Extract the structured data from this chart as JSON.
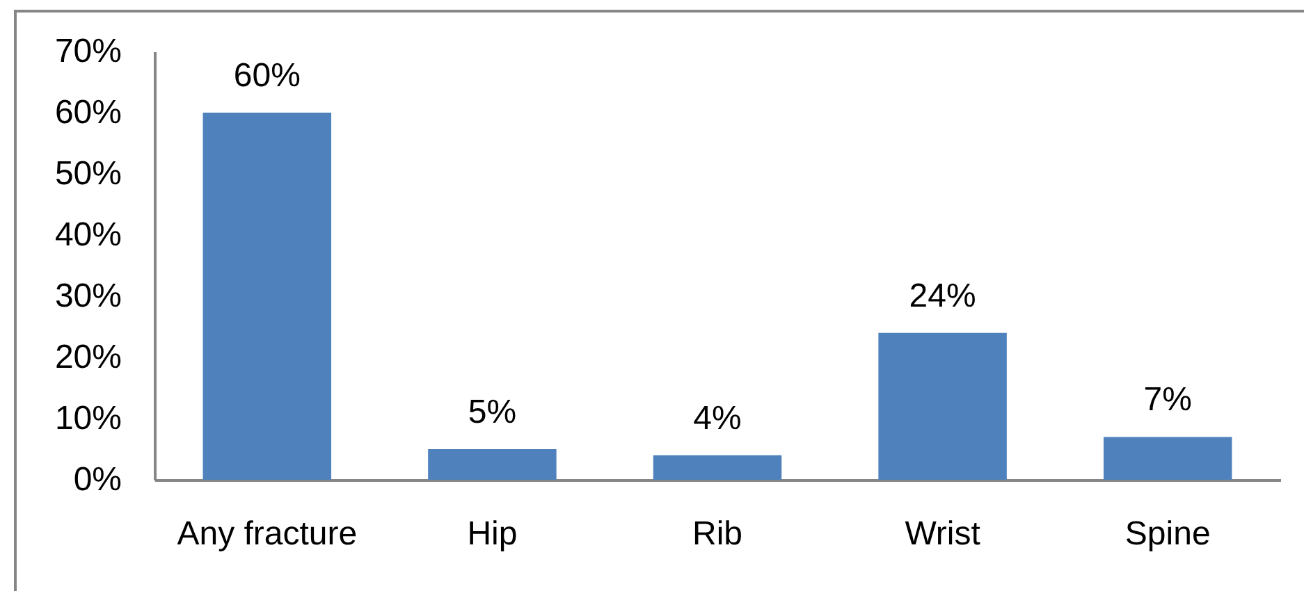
{
  "chart_data": {
    "type": "bar",
    "categories": [
      "Any fracture",
      "Hip",
      "Rib",
      "Wrist",
      "Spine"
    ],
    "values": [
      60,
      5,
      4,
      24,
      7
    ],
    "value_labels": [
      "60%",
      "5%",
      "4%",
      "24%",
      "7%"
    ],
    "color": "#4f81bd",
    "ylim": [
      0,
      70
    ],
    "yticks": [
      {
        "value": 0,
        "label": "0%"
      },
      {
        "value": 10,
        "label": "10%"
      },
      {
        "value": 20,
        "label": "20%"
      },
      {
        "value": 30,
        "label": "30%"
      },
      {
        "value": 40,
        "label": "40%"
      },
      {
        "value": 50,
        "label": "50%"
      },
      {
        "value": 60,
        "label": "60%"
      },
      {
        "value": 70,
        "label": "70%"
      }
    ]
  }
}
